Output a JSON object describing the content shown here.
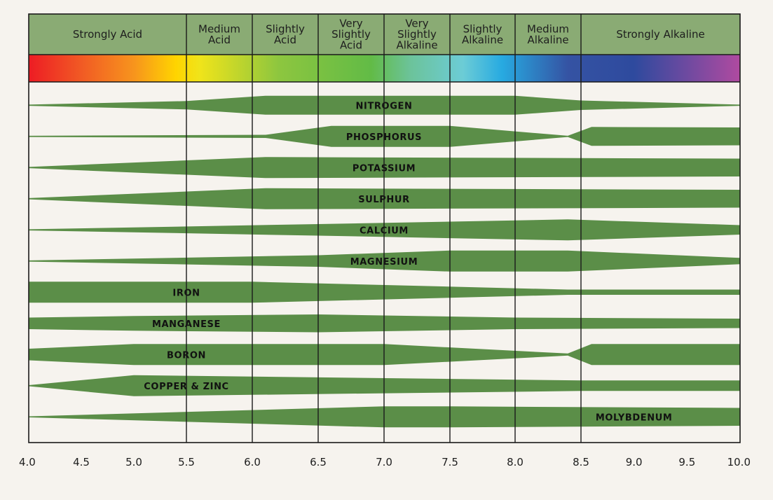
{
  "colors": {
    "background": "#f6f3ee",
    "header": "#8aab74",
    "band": "#5b8e48",
    "line": "#1a1a1a"
  },
  "chart_data": {
    "type": "band-chart",
    "title": "",
    "xlabel": "",
    "ylabel": "",
    "xlim": [
      4.0,
      10.0
    ],
    "x_ticks": [
      {
        "value": 4.0,
        "label": "4.0"
      },
      {
        "value": 4.5,
        "label": "4.5"
      },
      {
        "value": 5.0,
        "label": "5.0"
      },
      {
        "value": 5.5,
        "label": "5.5"
      },
      {
        "value": 6.0,
        "label": "6.0"
      },
      {
        "value": 6.5,
        "label": "6.5"
      },
      {
        "value": 7.0,
        "label": "7.0"
      },
      {
        "value": 7.5,
        "label": "7.5"
      },
      {
        "value": 8.0,
        "label": "8.0"
      },
      {
        "value": 8.5,
        "label": "8.5"
      },
      {
        "value": 9.0,
        "label": "9.0"
      },
      {
        "value": 9.5,
        "label": "9.5"
      },
      {
        "value": 10.0,
        "label": "10.0"
      }
    ],
    "categories": [
      {
        "key": "strongly-acid",
        "from": 4.0,
        "to": 5.5,
        "lines": [
          "Strongly Acid"
        ]
      },
      {
        "key": "medium-acid",
        "from": 5.5,
        "to": 6.0,
        "lines": [
          "Medium",
          "Acid"
        ]
      },
      {
        "key": "slightly-acid",
        "from": 6.0,
        "to": 6.5,
        "lines": [
          "Slightly",
          "Acid"
        ]
      },
      {
        "key": "very-slightly-acid",
        "from": 6.5,
        "to": 7.0,
        "lines": [
          "Very",
          "Slightly",
          "Acid"
        ]
      },
      {
        "key": "very-slightly-alkaline",
        "from": 7.0,
        "to": 7.5,
        "lines": [
          "Very",
          "Slightly",
          "Alkaline"
        ]
      },
      {
        "key": "slightly-alkaline",
        "from": 7.5,
        "to": 8.0,
        "lines": [
          "Slightly",
          "Alkaline"
        ]
      },
      {
        "key": "medium-alkaline",
        "from": 8.0,
        "to": 8.5,
        "lines": [
          "Medium",
          "Alkaline"
        ]
      },
      {
        "key": "strongly-alkaline",
        "from": 8.5,
        "to": 10.0,
        "lines": [
          "Strongly Alkaline"
        ]
      }
    ],
    "color_gradient": [
      {
        "ph": 4.0,
        "color": "#ed1c24"
      },
      {
        "ph": 4.5,
        "color": "#f15a24"
      },
      {
        "ph": 5.0,
        "color": "#f7941d"
      },
      {
        "ph": 5.4,
        "color": "#ffd400"
      },
      {
        "ph": 5.6,
        "color": "#f0e41a"
      },
      {
        "ph": 6.2,
        "color": "#8dc63f"
      },
      {
        "ph": 6.9,
        "color": "#62bb46"
      },
      {
        "ph": 7.2,
        "color": "#6cc39a"
      },
      {
        "ph": 7.6,
        "color": "#6cccd6"
      },
      {
        "ph": 7.9,
        "color": "#27aae1"
      },
      {
        "ph": 8.4,
        "color": "#3553a3"
      },
      {
        "ph": 9.0,
        "color": "#2e4a9e"
      },
      {
        "ph": 9.5,
        "color": "#6e4aa0"
      },
      {
        "ph": 10.0,
        "color": "#b04aa0"
      }
    ],
    "series": [
      {
        "name": "NITROGEN",
        "label_ph": 7.0,
        "profile": [
          [
            4.0,
            0.0
          ],
          [
            5.5,
            0.4
          ],
          [
            6.1,
            0.9
          ],
          [
            8.0,
            0.9
          ],
          [
            8.5,
            0.45
          ],
          [
            10.0,
            0.0
          ]
        ]
      },
      {
        "name": "PHOSPHORUS",
        "label_ph": 7.0,
        "profile": [
          [
            4.0,
            0.0
          ],
          [
            6.1,
            0.15
          ],
          [
            6.6,
            1.0
          ],
          [
            7.5,
            1.0
          ],
          [
            8.4,
            0.0
          ],
          [
            8.6,
            0.9
          ],
          [
            10.0,
            0.85
          ]
        ]
      },
      {
        "name": "POTASSIUM",
        "label_ph": 7.0,
        "profile": [
          [
            4.0,
            0.0
          ],
          [
            6.1,
            1.0
          ],
          [
            10.0,
            0.85
          ]
        ]
      },
      {
        "name": "SULPHUR",
        "label_ph": 7.0,
        "profile": [
          [
            4.0,
            0.0
          ],
          [
            6.1,
            1.0
          ],
          [
            10.0,
            0.85
          ]
        ]
      },
      {
        "name": "CALCIUM",
        "label_ph": 7.0,
        "profile": [
          [
            4.0,
            0.0
          ],
          [
            6.5,
            0.55
          ],
          [
            8.4,
            1.0
          ],
          [
            10.0,
            0.45
          ]
        ]
      },
      {
        "name": "MAGNESIUM",
        "label_ph": 7.0,
        "profile": [
          [
            4.0,
            0.0
          ],
          [
            6.5,
            0.55
          ],
          [
            7.5,
            1.0
          ],
          [
            8.4,
            1.0
          ],
          [
            10.0,
            0.3
          ]
        ]
      },
      {
        "name": "IRON",
        "label_ph": 5.5,
        "profile": [
          [
            4.0,
            1.0
          ],
          [
            6.0,
            1.0
          ],
          [
            8.4,
            0.25
          ],
          [
            10.0,
            0.25
          ]
        ]
      },
      {
        "name": "MANGANESE",
        "label_ph": 5.5,
        "profile": [
          [
            4.0,
            0.55
          ],
          [
            5.0,
            0.7
          ],
          [
            6.5,
            0.85
          ],
          [
            8.0,
            0.55
          ],
          [
            10.0,
            0.45
          ]
        ]
      },
      {
        "name": "BORON",
        "label_ph": 5.5,
        "profile": [
          [
            4.0,
            0.55
          ],
          [
            5.0,
            1.0
          ],
          [
            7.0,
            1.0
          ],
          [
            8.4,
            0.1
          ],
          [
            8.6,
            1.0
          ],
          [
            10.0,
            1.0
          ]
        ]
      },
      {
        "name": "COPPER & ZINC",
        "label_ph": 5.5,
        "profile": [
          [
            4.0,
            0.0
          ],
          [
            5.0,
            1.0
          ],
          [
            8.5,
            0.5
          ],
          [
            10.0,
            0.5
          ]
        ]
      },
      {
        "name": "MOLYBDENUM",
        "label_ph": 9.0,
        "profile": [
          [
            4.0,
            0.0
          ],
          [
            7.0,
            1.0
          ],
          [
            7.5,
            1.0
          ],
          [
            10.0,
            0.85
          ]
        ]
      }
    ]
  }
}
